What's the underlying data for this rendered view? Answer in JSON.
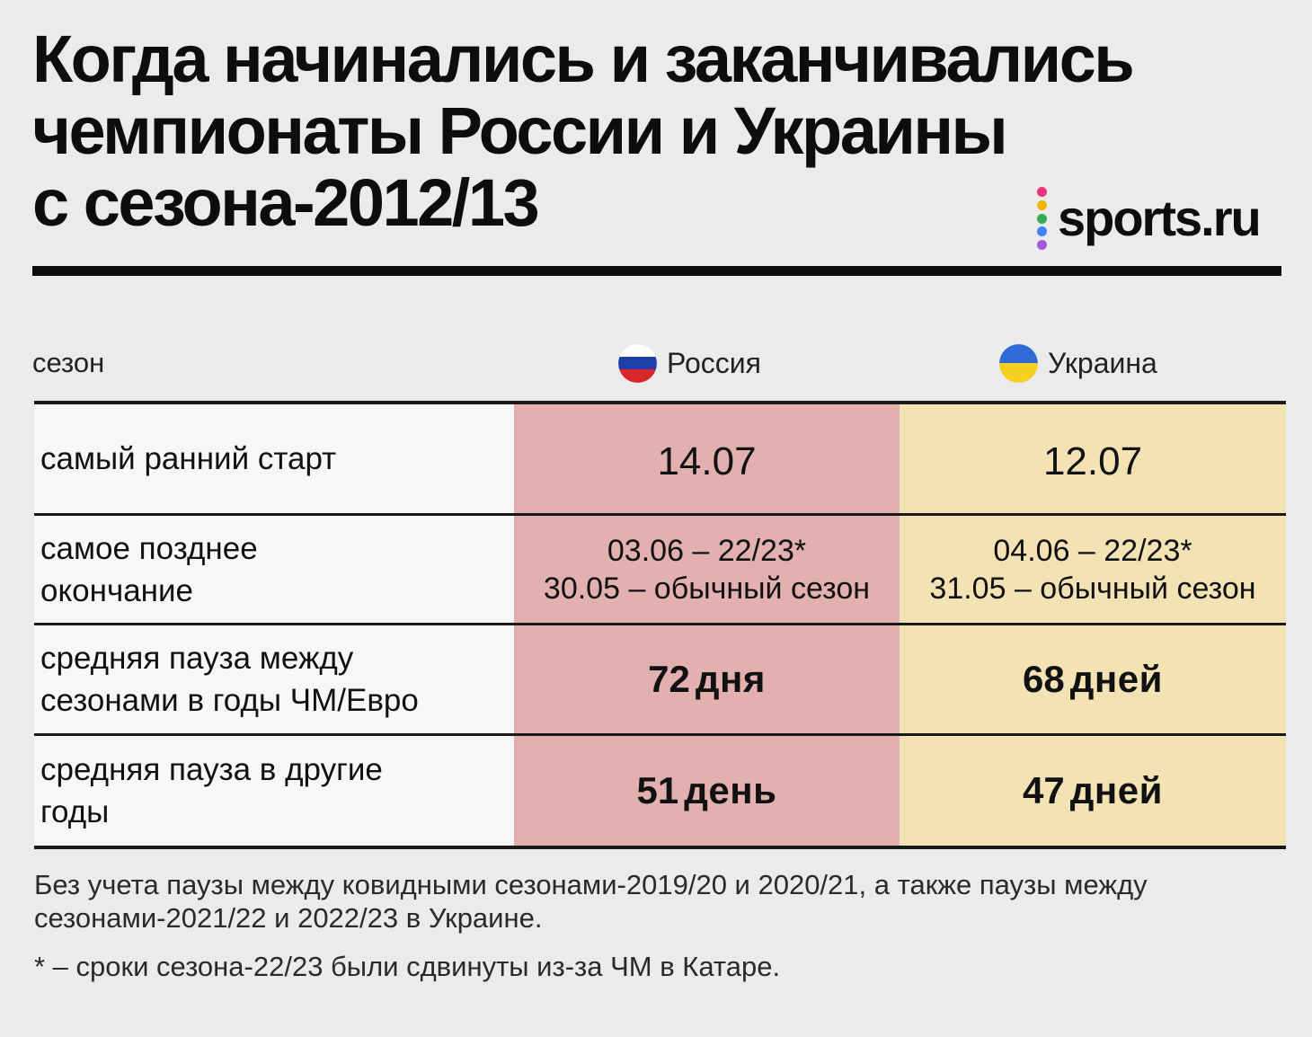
{
  "title": {
    "line1": "Когда начинались и заканчивались",
    "line2": "чемпионаты России и Украины",
    "line3": "с сезона-2012/13"
  },
  "logo": {
    "text": "sports.ru",
    "dot_colors": [
      "#e8337a",
      "#f4b400",
      "#34a853",
      "#3f83f8",
      "#a259d9"
    ]
  },
  "chart_data": {
    "type": "table",
    "header": {
      "season_label": "сезон",
      "columns": [
        {
          "name": "Россия",
          "flag": "russia-flag-icon",
          "colors": [
            "#ffffff",
            "#1f3fa8",
            "#d8262b"
          ],
          "cell_color": "#e2b0ae"
        },
        {
          "name": "Украина",
          "flag": "ukraine-flag-icon",
          "colors": [
            "#2f6ad8",
            "#f7cf1e"
          ],
          "cell_color": "#f3e2b4"
        }
      ]
    },
    "rows": [
      {
        "label": "самый ранний старт",
        "russia": {
          "line1": "14.07"
        },
        "ukraine": {
          "line1": "12.07"
        }
      },
      {
        "label": "самое позднее окончание",
        "label_line1": "самое позднее",
        "label_line2": "окончание",
        "russia": {
          "line1": "03.06 – 22/23*",
          "line2": "30.05 – обычный сезон"
        },
        "ukraine": {
          "line1": "04.06 – 22/23*",
          "line2": "31.05 – обычный сезон"
        }
      },
      {
        "label": "средняя пауза между сезонами в годы ЧМ/Евро",
        "label_line1": "средняя пауза между",
        "label_line2": "сезонами в годы ЧМ/Евро",
        "russia": {
          "value": "72",
          "unit": "дня"
        },
        "ukraine": {
          "value": "68",
          "unit": "дней"
        }
      },
      {
        "label": "средняя пауза в другие годы",
        "label_line1": "средняя пауза в другие",
        "label_line2": "годы",
        "russia": {
          "value": "51",
          "unit": "день"
        },
        "ukraine": {
          "value": "47",
          "unit": "дней"
        }
      }
    ]
  },
  "notes": {
    "note1_line1": "Без учета паузы между ковидными сезонами-2019/20 и 2020/21, а также паузы между",
    "note1_line2": "сезонами-2021/22 и 2022/23 в Украине.",
    "note2": "* – сроки сезона-22/23 были сдвинуты из-за ЧМ в Катаре."
  }
}
